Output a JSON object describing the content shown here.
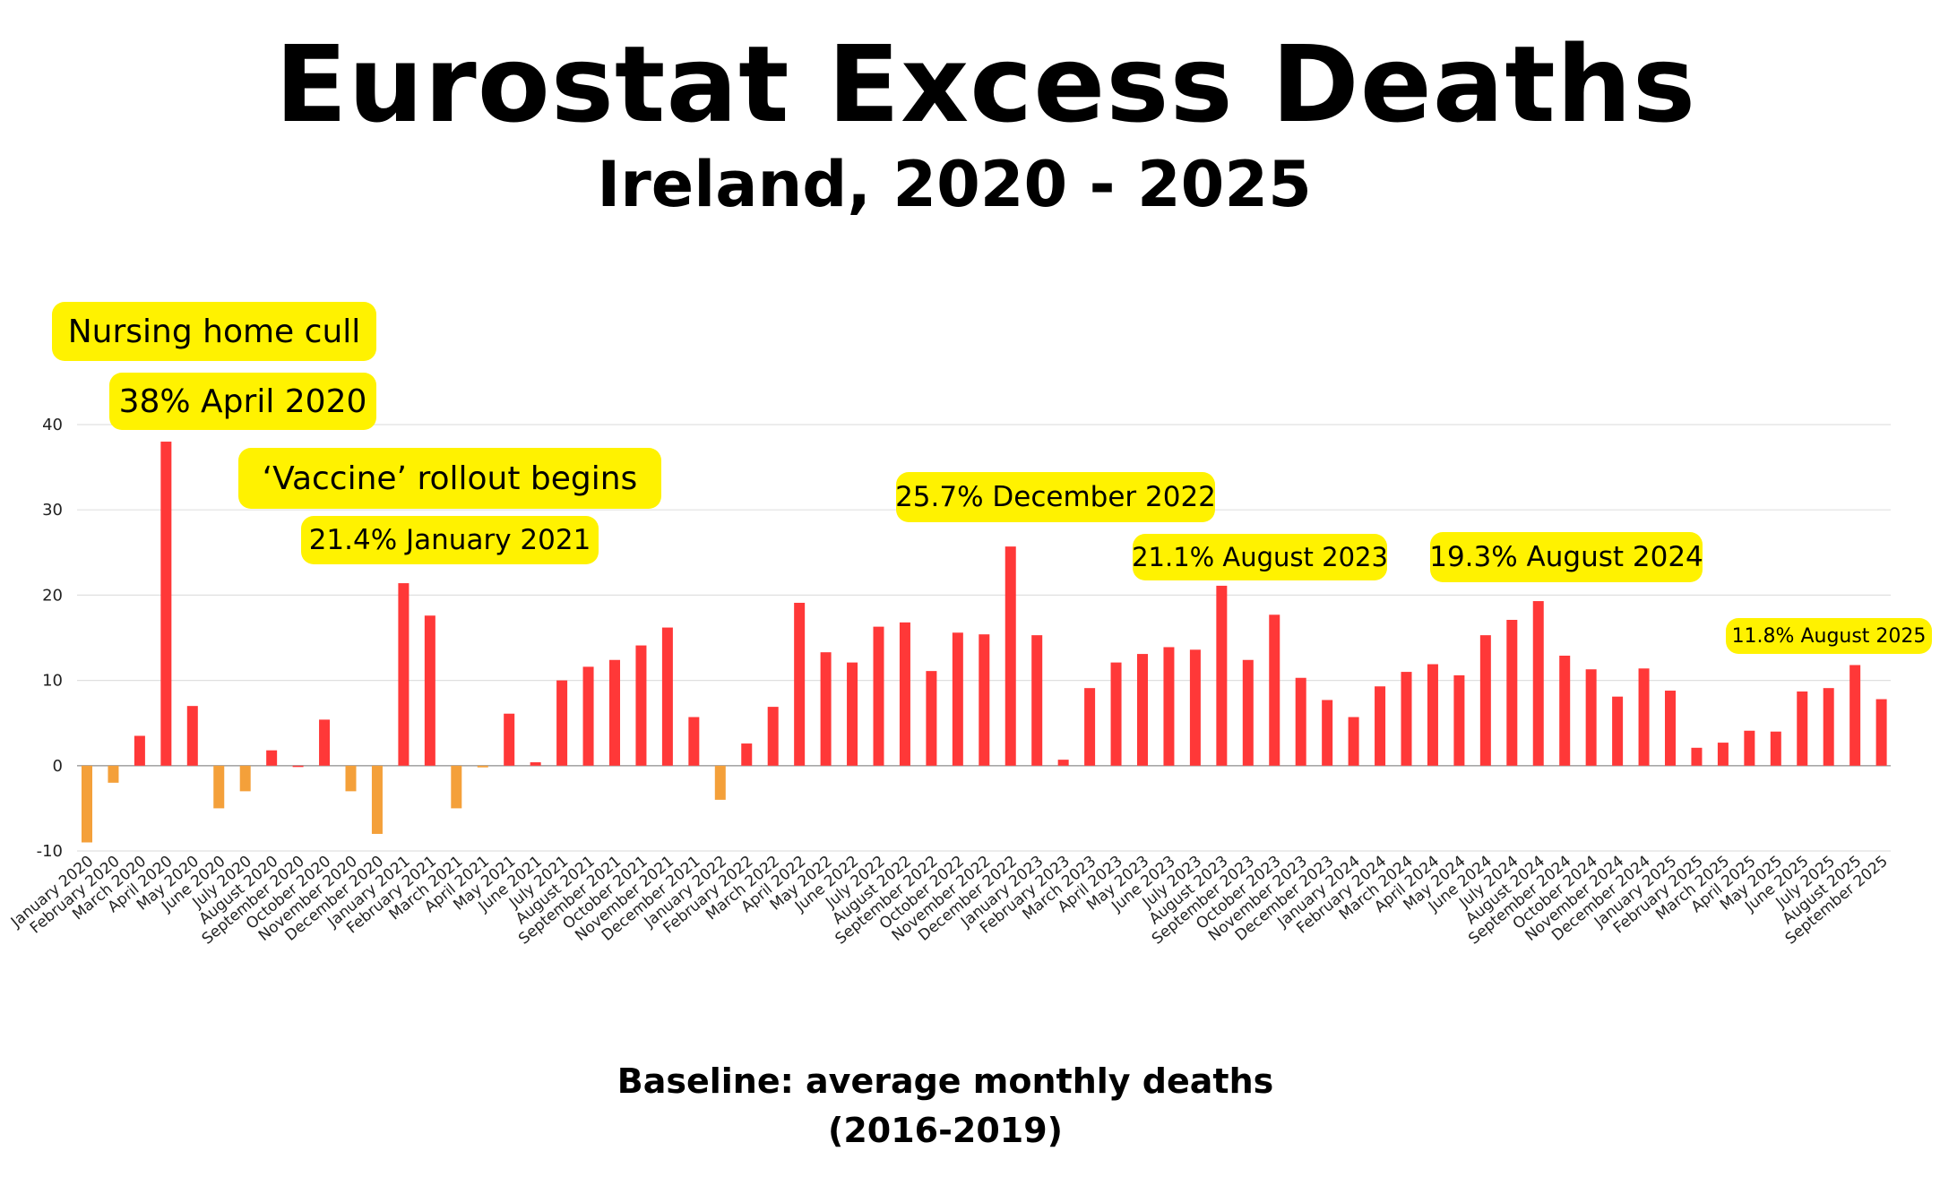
{
  "header": {
    "title": "Eurostat Excess Deaths",
    "subtitle": "Ireland, 2020 - 2025"
  },
  "footer": {
    "baseline_note": "Baseline: average monthly deaths  (2016-2019)"
  },
  "annotations": {
    "nursing_home": "Nursing home cull",
    "april_2020": "38% April 2020",
    "vaccine": "‘Vaccine’ rollout begins",
    "january_2021": "21.4% January 2021",
    "december_2022": "25.7% December 2022",
    "august_2023": "21.1% August 2023",
    "august_2024": "19.3% August 2024",
    "august_2025": "11.8% August 2025"
  },
  "colors": {
    "positive_bar": "#ff3838",
    "negative_bar": "#f4a03a",
    "highlight": "#fff200",
    "grid": "#e0e0e0"
  },
  "chart_data": {
    "type": "bar",
    "title": "Eurostat Excess Deaths",
    "subtitle": "Ireland, 2020 - 2025",
    "xlabel": "",
    "ylabel": "",
    "ylim": [
      -10,
      40
    ],
    "yticks": [
      -10,
      0,
      10,
      20,
      30,
      40
    ],
    "grid": true,
    "categories": [
      "January 2020",
      "February 2020",
      "March 2020",
      "April 2020",
      "May 2020",
      "June 2020",
      "July 2020",
      "August 2020",
      "September 2020",
      "October 2020",
      "November 2020",
      "December 2020",
      "January 2021",
      "February 2021",
      "March 2021",
      "April 2021",
      "May 2021",
      "June 2021",
      "July 2021",
      "August 2021",
      "September 2021",
      "October 2021",
      "November 2021",
      "December 2021",
      "January 2022",
      "February 2022",
      "March 2022",
      "April 2022",
      "May 2022",
      "June 2022",
      "July 2022",
      "August 2022",
      "September 2022",
      "October 2022",
      "November 2022",
      "December 2022",
      "January 2023",
      "February 2023",
      "March 2023",
      "April 2023",
      "May 2023",
      "June 2023",
      "July 2023",
      "August 2023",
      "September 2023",
      "October 2023",
      "November 2023",
      "December 2023",
      "January 2024",
      "February 2024",
      "March 2024",
      "April 2024",
      "May 2024",
      "June 2024",
      "July 2024",
      "August 2024",
      "September 2024",
      "October 2024",
      "November 2024",
      "December 2024",
      "January 2025",
      "February 2025",
      "March 2025",
      "April 2025",
      "May 2025",
      "June 2025",
      "July 2025",
      "August 2025",
      "September 2025"
    ],
    "values": [
      -9,
      -2,
      3.5,
      38,
      7,
      -5,
      -3,
      1.8,
      0,
      5.4,
      -3,
      -8,
      21.4,
      17.6,
      -5,
      -0.2,
      6.1,
      0.4,
      10,
      11.6,
      12.4,
      14.1,
      16.2,
      5.7,
      -4,
      2.6,
      6.9,
      19.1,
      13.3,
      12.1,
      16.3,
      16.8,
      11.1,
      15.6,
      15.4,
      25.7,
      15.3,
      0.7,
      9.1,
      12.1,
      13.1,
      13.9,
      13.6,
      21.1,
      12.4,
      17.7,
      10.3,
      7.7,
      5.7,
      9.3,
      11,
      11.9,
      10.6,
      15.3,
      17.1,
      19.3,
      12.9,
      11.3,
      8.1,
      11.4,
      8.8,
      2.1,
      2.7,
      4.1,
      4,
      8.7,
      9.1,
      11.8,
      7.8
    ]
  }
}
